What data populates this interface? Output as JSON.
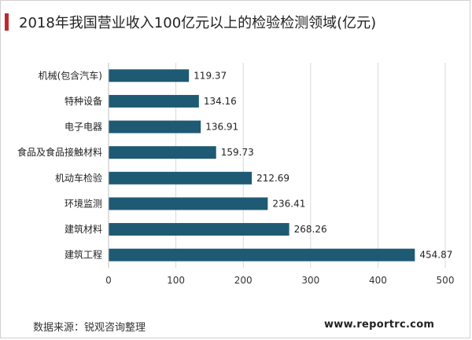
{
  "title": "2018年我国营业收入100亿元以上的检验检测领域(亿元)",
  "source": "数据来源：锐观咨询整理",
  "website": "www.reportrc.com",
  "colors": {
    "bar": "#1e5a73",
    "accent": "#c0282d",
    "grid": "#d9d9d9",
    "text": "#222222"
  },
  "chart_data": {
    "type": "bar",
    "orientation": "horizontal",
    "categories": [
      "机械(包含汽车)",
      "特种设备",
      "电子电器",
      "食品及食品接触材料",
      "机动车检验",
      "环境监测",
      "建筑材料",
      "建筑工程"
    ],
    "values": [
      119.37,
      134.16,
      136.91,
      159.73,
      212.69,
      236.41,
      268.26,
      454.87
    ],
    "value_labels": [
      "119.37",
      "134.16",
      "136.91",
      "159.73",
      "212.69",
      "236.41",
      "268.26",
      "454.87"
    ],
    "xlim": [
      0,
      500
    ],
    "xticks": [
      "0",
      "100",
      "200",
      "300",
      "400",
      "500"
    ],
    "grid": true,
    "legend": "none"
  }
}
